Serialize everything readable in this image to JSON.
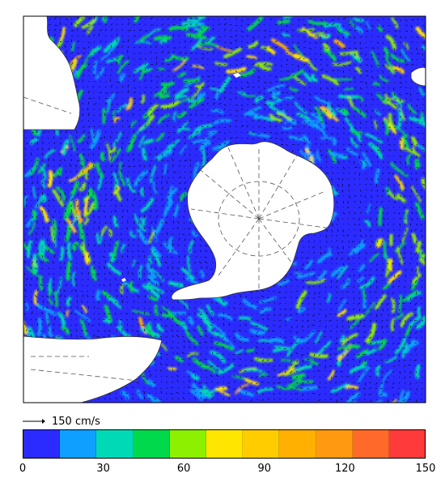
{
  "map": {
    "reference_vector_label": "150 cm/s",
    "colorbar": {
      "min": 0,
      "max": 150,
      "step": 15,
      "colors": [
        "#2b2bff",
        "#0fa0ff",
        "#00d9b6",
        "#00d94c",
        "#8cf000",
        "#ffe600",
        "#ffcc00",
        "#ffb000",
        "#ff9a10",
        "#ff6a2a",
        "#ff3a3a"
      ],
      "tick_labels": [
        "0",
        "30",
        "60",
        "90",
        "120",
        "150"
      ]
    },
    "colors": {
      "land": "#ffffff",
      "frame": "#000000",
      "graticule": "#555555",
      "vector": "#000000"
    }
  }
}
